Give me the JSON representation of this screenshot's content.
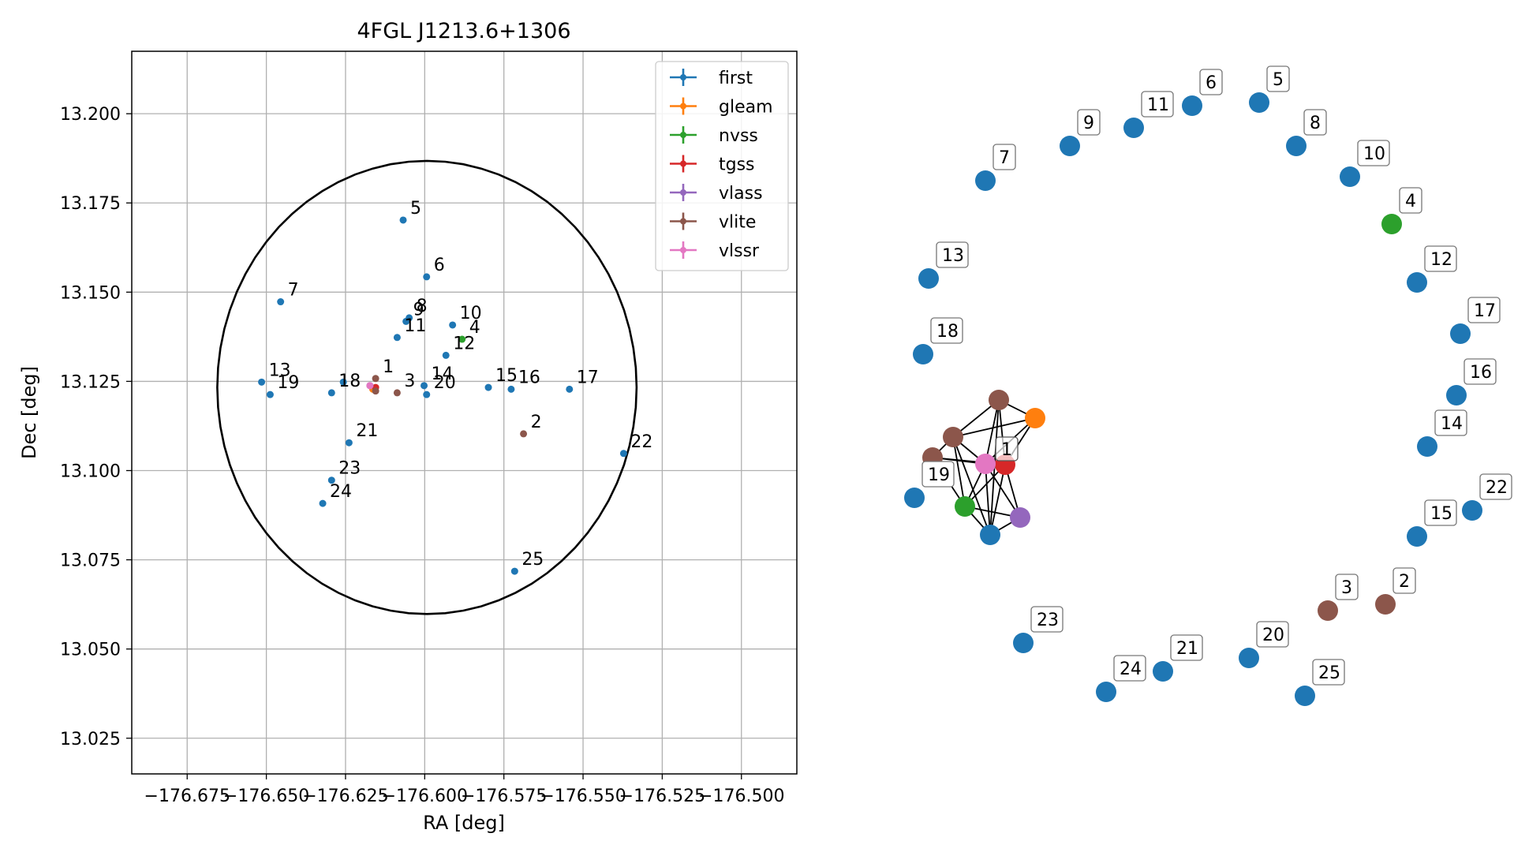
{
  "chart_data": [
    {
      "type": "scatter",
      "title": "4FGL J1213.6+1306",
      "xlabel": "RA [deg]",
      "ylabel": "Dec [deg]",
      "xlim": [
        -176.6925,
        -176.4825
      ],
      "ylim": [
        13.015,
        13.2175
      ],
      "grid": true,
      "legend_position": "top-right",
      "xticks": [
        -176.675,
        -176.65,
        -176.625,
        -176.6,
        -176.575,
        -176.55,
        -176.525,
        -176.5
      ],
      "xtick_labels": [
        "−176.675",
        "−176.650",
        "−176.625",
        "−176.600",
        "−176.575",
        "−176.550",
        "−176.525",
        "−176.500"
      ],
      "yticks": [
        13.025,
        13.05,
        13.075,
        13.1,
        13.125,
        13.15,
        13.175,
        13.2
      ],
      "ytick_labels": [
        "13.025",
        "13.050",
        "13.075",
        "13.100",
        "13.125",
        "13.150",
        "13.175",
        "13.200"
      ],
      "ellipse": {
        "center_ra": -176.5993,
        "center_dec": 13.1233,
        "ra_radius": 0.0662,
        "dec_radius": 0.0635,
        "color": "#000000"
      },
      "series": [
        {
          "name": "first",
          "color": "#1f77b4",
          "points": [
            {
              "ra": -176.6257,
              "dec": 13.1248
            },
            {
              "ra": -176.6068,
              "dec": 13.1702
            },
            {
              "ra": -176.5994,
              "dec": 13.1543
            },
            {
              "ra": -176.6455,
              "dec": 13.1473
            },
            {
              "ra": -176.6049,
              "dec": 13.1428
            },
            {
              "ra": -176.6059,
              "dec": 13.1418
            },
            {
              "ra": -176.5912,
              "dec": 13.1408
            },
            {
              "ra": -176.6087,
              "dec": 13.1373
            },
            {
              "ra": -176.5933,
              "dec": 13.1323
            },
            {
              "ra": -176.6515,
              "dec": 13.1248
            },
            {
              "ra": -176.6002,
              "dec": 13.1238
            },
            {
              "ra": -176.5799,
              "dec": 13.1233
            },
            {
              "ra": -176.5727,
              "dec": 13.1228
            },
            {
              "ra": -176.5543,
              "dec": 13.1228
            },
            {
              "ra": -176.6294,
              "dec": 13.1218
            },
            {
              "ra": -176.6488,
              "dec": 13.1213
            },
            {
              "ra": -176.5994,
              "dec": 13.1213
            },
            {
              "ra": -176.6239,
              "dec": 13.1078
            },
            {
              "ra": -176.5372,
              "dec": 13.1048
            },
            {
              "ra": -176.6294,
              "dec": 13.0973
            },
            {
              "ra": -176.6322,
              "dec": 13.0908
            },
            {
              "ra": -176.5716,
              "dec": 13.0718
            }
          ]
        },
        {
          "name": "gleam",
          "color": "#ff7f0e",
          "points": [
            {
              "ra": -176.6164,
              "dec": 13.1228
            }
          ]
        },
        {
          "name": "nvss",
          "color": "#2ca02c",
          "points": [
            {
              "ra": -176.5882,
              "dec": 13.1368
            }
          ]
        },
        {
          "name": "tgss",
          "color": "#d62728",
          "points": [
            {
              "ra": -176.6155,
              "dec": 13.1233
            }
          ]
        },
        {
          "name": "vlass",
          "color": "#9467bd",
          "points": [
            {
              "ra": -176.6173,
              "dec": 13.1238
            }
          ]
        },
        {
          "name": "vlite",
          "color": "#8c564b",
          "points": [
            {
              "ra": -176.6155,
              "dec": 13.1258
            },
            {
              "ra": -176.6155,
              "dec": 13.1223
            },
            {
              "ra": -176.6087,
              "dec": 13.1218
            },
            {
              "ra": -176.5688,
              "dec": 13.1103
            }
          ]
        },
        {
          "name": "vlssr",
          "color": "#e377c2",
          "points": [
            {
              "ra": -176.6173,
              "dec": 13.1238
            }
          ]
        }
      ],
      "annotations": [
        {
          "text": "1",
          "ra": -176.6155,
          "dec": 13.1258
        },
        {
          "text": "2",
          "ra": -176.5688,
          "dec": 13.1103
        },
        {
          "text": "3",
          "ra": -176.6087,
          "dec": 13.1218
        },
        {
          "text": "4",
          "ra": -176.5882,
          "dec": 13.1368
        },
        {
          "text": "5",
          "ra": -176.6068,
          "dec": 13.1702
        },
        {
          "text": "6",
          "ra": -176.5994,
          "dec": 13.1543
        },
        {
          "text": "7",
          "ra": -176.6455,
          "dec": 13.1473
        },
        {
          "text": "8",
          "ra": -176.6049,
          "dec": 13.1428
        },
        {
          "text": "9",
          "ra": -176.6059,
          "dec": 13.1418
        },
        {
          "text": "10",
          "ra": -176.5912,
          "dec": 13.1408
        },
        {
          "text": "11",
          "ra": -176.6087,
          "dec": 13.1373
        },
        {
          "text": "12",
          "ra": -176.5933,
          "dec": 13.1323
        },
        {
          "text": "13",
          "ra": -176.6515,
          "dec": 13.1248
        },
        {
          "text": "14",
          "ra": -176.6002,
          "dec": 13.1238
        },
        {
          "text": "15",
          "ra": -176.5799,
          "dec": 13.1233
        },
        {
          "text": "16",
          "ra": -176.5727,
          "dec": 13.1228
        },
        {
          "text": "17",
          "ra": -176.5543,
          "dec": 13.1228
        },
        {
          "text": "18",
          "ra": -176.6294,
          "dec": 13.1218
        },
        {
          "text": "19",
          "ra": -176.6488,
          "dec": 13.1213
        },
        {
          "text": "20",
          "ra": -176.5994,
          "dec": 13.1213
        },
        {
          "text": "21",
          "ra": -176.6239,
          "dec": 13.1078
        },
        {
          "text": "22",
          "ra": -176.5372,
          "dec": 13.1048
        },
        {
          "text": "23",
          "ra": -176.6294,
          "dec": 13.0973
        },
        {
          "text": "24",
          "ra": -176.6322,
          "dec": 13.0908
        },
        {
          "text": "25",
          "ra": -176.5716,
          "dec": 13.0718
        }
      ]
    },
    {
      "type": "network",
      "title": "",
      "axes_visible": false,
      "nodes": [
        {
          "label": "1",
          "color": "#1f77b4"
        },
        {
          "label": "2",
          "color": "#8c564b"
        },
        {
          "label": "3",
          "color": "#8c564b"
        },
        {
          "label": "4",
          "color": "#2ca02c"
        },
        {
          "label": "5",
          "color": "#1f77b4"
        },
        {
          "label": "6",
          "color": "#1f77b4"
        },
        {
          "label": "7",
          "color": "#1f77b4"
        },
        {
          "label": "8",
          "color": "#1f77b4"
        },
        {
          "label": "9",
          "color": "#1f77b4"
        },
        {
          "label": "10",
          "color": "#1f77b4"
        },
        {
          "label": "11",
          "color": "#1f77b4"
        },
        {
          "label": "12",
          "color": "#1f77b4"
        },
        {
          "label": "13",
          "color": "#1f77b4"
        },
        {
          "label": "14",
          "color": "#1f77b4"
        },
        {
          "label": "15",
          "color": "#1f77b4"
        },
        {
          "label": "16",
          "color": "#1f77b4"
        },
        {
          "label": "17",
          "color": "#1f77b4"
        },
        {
          "label": "18",
          "color": "#1f77b4"
        },
        {
          "label": "19",
          "color": "#1f77b4"
        },
        {
          "label": "20",
          "color": "#1f77b4"
        },
        {
          "label": "21",
          "color": "#1f77b4"
        },
        {
          "label": "22",
          "color": "#1f77b4"
        },
        {
          "label": "23",
          "color": "#1f77b4"
        },
        {
          "label": "24",
          "color": "#1f77b4"
        },
        {
          "label": "25",
          "color": "#1f77b4"
        }
      ],
      "cluster": {
        "label": "1",
        "members": [
          {
            "id": "c-first",
            "color": "#1f77b4"
          },
          {
            "id": "c-gleam",
            "color": "#ff7f0e"
          },
          {
            "id": "c-nvss",
            "color": "#2ca02c"
          },
          {
            "id": "c-tgss",
            "color": "#d62728"
          },
          {
            "id": "c-vlass",
            "color": "#9467bd"
          },
          {
            "id": "c-vlite-a",
            "color": "#8c564b"
          },
          {
            "id": "c-vlite-b",
            "color": "#8c564b"
          },
          {
            "id": "c-vlite-c",
            "color": "#8c564b"
          },
          {
            "id": "c-vlssr",
            "color": "#e377c2"
          }
        ],
        "edges": [
          [
            "c-vlite-a",
            "c-gleam"
          ],
          [
            "c-vlite-a",
            "c-vlite-b"
          ],
          [
            "c-vlite-a",
            "c-vlssr"
          ],
          [
            "c-vlite-a",
            "c-tgss"
          ],
          [
            "c-vlite-a",
            "c-first"
          ],
          [
            "c-gleam",
            "c-vlite-b"
          ],
          [
            "c-gleam",
            "c-tgss"
          ],
          [
            "c-gleam",
            "c-vlssr"
          ],
          [
            "c-vlite-b",
            "c-vlite-c"
          ],
          [
            "c-vlite-b",
            "c-vlssr"
          ],
          [
            "c-vlite-b",
            "c-nvss"
          ],
          [
            "c-vlite-b",
            "c-first"
          ],
          [
            "c-vlite-c",
            "c-vlssr"
          ],
          [
            "c-vlite-c",
            "c-tgss"
          ],
          [
            "c-vlite-c",
            "c-nvss"
          ],
          [
            "c-vlssr",
            "c-tgss"
          ],
          [
            "c-vlssr",
            "c-nvss"
          ],
          [
            "c-vlssr",
            "c-first"
          ],
          [
            "c-vlssr",
            "c-vlass"
          ],
          [
            "c-tgss",
            "c-nvss"
          ],
          [
            "c-tgss",
            "c-first"
          ],
          [
            "c-tgss",
            "c-vlass"
          ],
          [
            "c-nvss",
            "c-first"
          ],
          [
            "c-nvss",
            "c-vlass"
          ],
          [
            "c-first",
            "c-vlass"
          ]
        ]
      }
    }
  ]
}
